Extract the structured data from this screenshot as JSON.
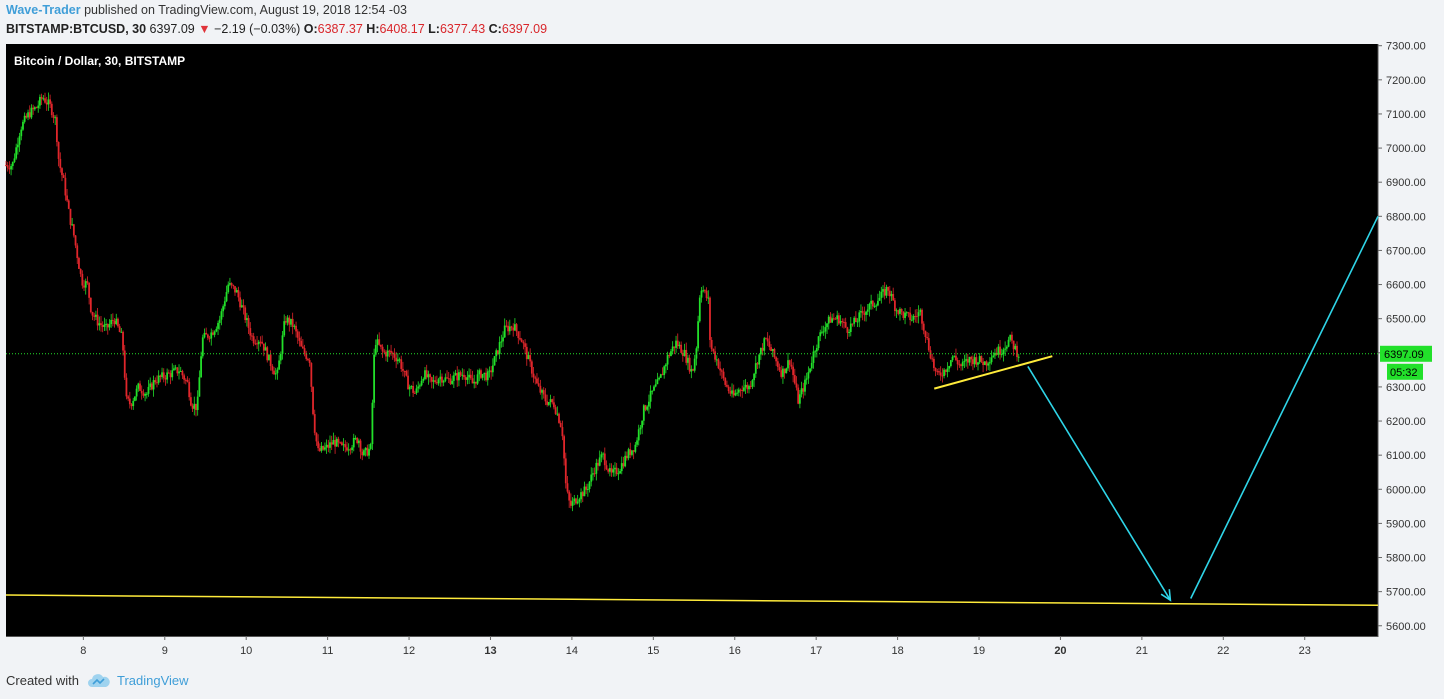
{
  "header": {
    "author": "Wave-Trader",
    "published_text": "published on TradingView.com, August 19, 2018 12:54 -03",
    "symbol": "BITSTAMP:BTCUSD, 30",
    "last": "6397.09",
    "change": "−2.19 (−0.03%)",
    "o_label": "O:",
    "o_value": "6387.37",
    "h_label": "H:",
    "h_value": "6408.17",
    "l_label": "L:",
    "l_value": "6377.43",
    "c_label": "C:",
    "c_value": "6397.09"
  },
  "footer": {
    "created_with": "Created with",
    "brand": "TradingView"
  },
  "colors": {
    "background": "#000000",
    "up": "#22e02a",
    "down": "#e0262b",
    "trendline": "#ffeb3b",
    "arrow": "#2fd5e8",
    "price_line": "#22e02a",
    "axis_bg": "#f1f3f6"
  },
  "chart_data": {
    "type": "candlestick",
    "title": "Bitcoin / Dollar, 30, BITSTAMP",
    "y_ticks": [
      "5600.00",
      "5700.00",
      "5800.00",
      "5900.00",
      "6000.00",
      "6100.00",
      "6200.00",
      "6300.00",
      "6400.00",
      "6500.00",
      "6600.00",
      "6700.00",
      "6800.00",
      "6900.00",
      "7000.00",
      "7100.00",
      "7200.00",
      "7300.00"
    ],
    "x_ticks": [
      "8",
      "9",
      "10",
      "11",
      "12",
      "13",
      "14",
      "15",
      "16",
      "17",
      "18",
      "19",
      "20",
      "21",
      "22",
      "23"
    ],
    "x_tick_bold": [
      "13",
      "20"
    ],
    "ylim": [
      5570,
      7305
    ],
    "xlim": [
      7.05,
      23.9
    ],
    "last_price": {
      "value": 6397.09,
      "label": "6397.09",
      "countdown": "05:32"
    },
    "price_path": [
      [
        7.05,
        6950
      ],
      [
        7.15,
        6950
      ],
      [
        7.25,
        7060
      ],
      [
        7.35,
        7100
      ],
      [
        7.45,
        7120
      ],
      [
        7.52,
        7150
      ],
      [
        7.62,
        7120
      ],
      [
        7.68,
        7080
      ],
      [
        7.72,
        6960
      ],
      [
        7.78,
        6900
      ],
      [
        7.85,
        6800
      ],
      [
        7.9,
        6750
      ],
      [
        7.95,
        6680
      ],
      [
        8.0,
        6610
      ],
      [
        8.07,
        6600
      ],
      [
        8.12,
        6520
      ],
      [
        8.2,
        6490
      ],
      [
        8.3,
        6470
      ],
      [
        8.4,
        6500
      ],
      [
        8.5,
        6440
      ],
      [
        8.55,
        6260
      ],
      [
        8.6,
        6250
      ],
      [
        8.7,
        6300
      ],
      [
        8.8,
        6280
      ],
      [
        8.9,
        6320
      ],
      [
        9.0,
        6330
      ],
      [
        9.1,
        6340
      ],
      [
        9.2,
        6350
      ],
      [
        9.3,
        6310
      ],
      [
        9.35,
        6250
      ],
      [
        9.42,
        6240
      ],
      [
        9.48,
        6440
      ],
      [
        9.6,
        6460
      ],
      [
        9.7,
        6500
      ],
      [
        9.8,
        6600
      ],
      [
        9.9,
        6580
      ],
      [
        10.0,
        6510
      ],
      [
        10.1,
        6440
      ],
      [
        10.2,
        6440
      ],
      [
        10.3,
        6380
      ],
      [
        10.4,
        6330
      ],
      [
        10.5,
        6500
      ],
      [
        10.6,
        6480
      ],
      [
        10.7,
        6410
      ],
      [
        10.8,
        6380
      ],
      [
        10.85,
        6200
      ],
      [
        10.9,
        6110
      ],
      [
        11.0,
        6120
      ],
      [
        11.1,
        6140
      ],
      [
        11.2,
        6120
      ],
      [
        11.3,
        6130
      ],
      [
        11.4,
        6150
      ],
      [
        11.45,
        6100
      ],
      [
        11.55,
        6120
      ],
      [
        11.6,
        6440
      ],
      [
        11.7,
        6400
      ],
      [
        11.8,
        6400
      ],
      [
        11.9,
        6380
      ],
      [
        12.0,
        6310
      ],
      [
        12.1,
        6280
      ],
      [
        12.2,
        6340
      ],
      [
        12.3,
        6310
      ],
      [
        12.4,
        6330
      ],
      [
        12.5,
        6320
      ],
      [
        12.6,
        6330
      ],
      [
        12.7,
        6340
      ],
      [
        12.8,
        6310
      ],
      [
        12.9,
        6340
      ],
      [
        13.0,
        6330
      ],
      [
        13.1,
        6400
      ],
      [
        13.2,
        6470
      ],
      [
        13.3,
        6480
      ],
      [
        13.4,
        6440
      ],
      [
        13.5,
        6370
      ],
      [
        13.6,
        6300
      ],
      [
        13.7,
        6260
      ],
      [
        13.8,
        6250
      ],
      [
        13.9,
        6180
      ],
      [
        13.95,
        6000
      ],
      [
        14.0,
        5950
      ],
      [
        14.1,
        5980
      ],
      [
        14.2,
        6000
      ],
      [
        14.3,
        6060
      ],
      [
        14.4,
        6100
      ],
      [
        14.5,
        6040
      ],
      [
        14.6,
        6060
      ],
      [
        14.7,
        6100
      ],
      [
        14.8,
        6130
      ],
      [
        14.9,
        6230
      ],
      [
        15.0,
        6280
      ],
      [
        15.1,
        6320
      ],
      [
        15.2,
        6390
      ],
      [
        15.3,
        6430
      ],
      [
        15.4,
        6400
      ],
      [
        15.5,
        6340
      ],
      [
        15.55,
        6420
      ],
      [
        15.6,
        6600
      ],
      [
        15.7,
        6550
      ],
      [
        15.72,
        6420
      ],
      [
        15.8,
        6380
      ],
      [
        15.9,
        6310
      ],
      [
        16.0,
        6270
      ],
      [
        16.1,
        6300
      ],
      [
        16.2,
        6300
      ],
      [
        16.3,
        6380
      ],
      [
        16.4,
        6440
      ],
      [
        16.5,
        6390
      ],
      [
        16.6,
        6340
      ],
      [
        16.7,
        6380
      ],
      [
        16.8,
        6260
      ],
      [
        16.9,
        6320
      ],
      [
        17.0,
        6410
      ],
      [
        17.1,
        6470
      ],
      [
        17.2,
        6500
      ],
      [
        17.3,
        6500
      ],
      [
        17.4,
        6470
      ],
      [
        17.5,
        6490
      ],
      [
        17.6,
        6520
      ],
      [
        17.7,
        6540
      ],
      [
        17.8,
        6560
      ],
      [
        17.9,
        6590
      ],
      [
        18.0,
        6530
      ],
      [
        18.1,
        6510
      ],
      [
        18.2,
        6500
      ],
      [
        18.3,
        6520
      ],
      [
        18.4,
        6420
      ],
      [
        18.5,
        6330
      ],
      [
        18.6,
        6350
      ],
      [
        18.7,
        6390
      ],
      [
        18.8,
        6360
      ],
      [
        18.9,
        6380
      ],
      [
        19.0,
        6380
      ],
      [
        19.1,
        6370
      ],
      [
        19.2,
        6400
      ],
      [
        19.3,
        6410
      ],
      [
        19.4,
        6440
      ],
      [
        19.5,
        6397
      ]
    ],
    "annotations": {
      "support_line": {
        "from": [
          7.05,
          5690
        ],
        "to": [
          23.9,
          5660
        ]
      },
      "short_trendline": {
        "from": [
          18.45,
          6295
        ],
        "to": [
          19.9,
          6390
        ]
      },
      "arrow_down": {
        "from": [
          19.6,
          6360
        ],
        "to": [
          21.35,
          5675
        ]
      },
      "arrow_up": {
        "from": [
          21.6,
          5680
        ],
        "to": [
          23.9,
          6800
        ]
      }
    }
  }
}
